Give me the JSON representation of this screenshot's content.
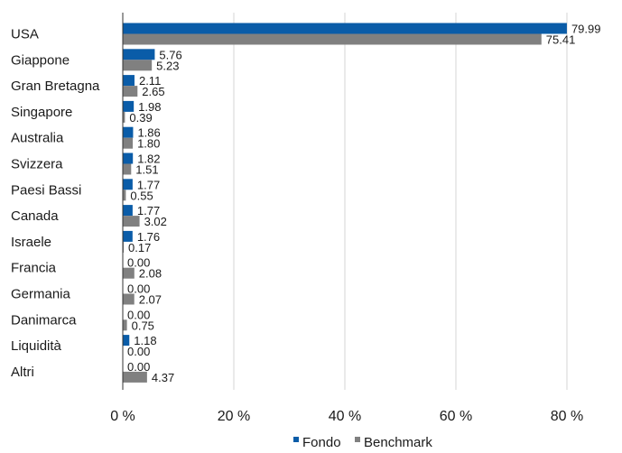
{
  "chart_data": {
    "type": "bar",
    "orientation": "horizontal",
    "categories": [
      "USA",
      "Giappone",
      "Gran Bretagna",
      "Singapore",
      "Australia",
      "Svizzera",
      "Paesi Bassi",
      "Canada",
      "Israele",
      "Francia",
      "Germania",
      "Danimarca",
      "Liquidità",
      "Altri"
    ],
    "series": [
      {
        "name": "Fondo",
        "color": "#0a5ca8",
        "values": [
          79.99,
          5.76,
          2.11,
          1.98,
          1.86,
          1.82,
          1.77,
          1.77,
          1.76,
          0.0,
          0.0,
          0.0,
          1.18,
          0.0
        ],
        "labels": [
          "79.99",
          "5.76",
          "2.11",
          "1.98",
          "1.86",
          "1.82",
          "1.77",
          "1.77",
          "1.76",
          "0.00",
          "0.00",
          "0.00",
          "1.18",
          "0.00"
        ]
      },
      {
        "name": "Benchmark",
        "color": "#808080",
        "values": [
          75.41,
          5.23,
          2.65,
          0.39,
          1.8,
          1.51,
          0.55,
          3.02,
          0.17,
          2.08,
          2.07,
          0.75,
          0.0,
          4.37
        ],
        "labels": [
          "75.41",
          "5.23",
          "2.65",
          "0.39",
          "1.80",
          "1.51",
          "0.55",
          "3.02",
          "0.17",
          "2.08",
          "2.07",
          "0.75",
          "0.00",
          "4.37"
        ]
      }
    ],
    "xlim": [
      0,
      80
    ],
    "xticks": [
      0,
      20,
      40,
      60,
      80
    ],
    "xtick_labels": [
      "0 %",
      "20 %",
      "40 %",
      "60 %",
      "80 %"
    ],
    "grid": true,
    "legend_position": "bottom-center",
    "title": "",
    "xlabel": "",
    "ylabel": ""
  }
}
